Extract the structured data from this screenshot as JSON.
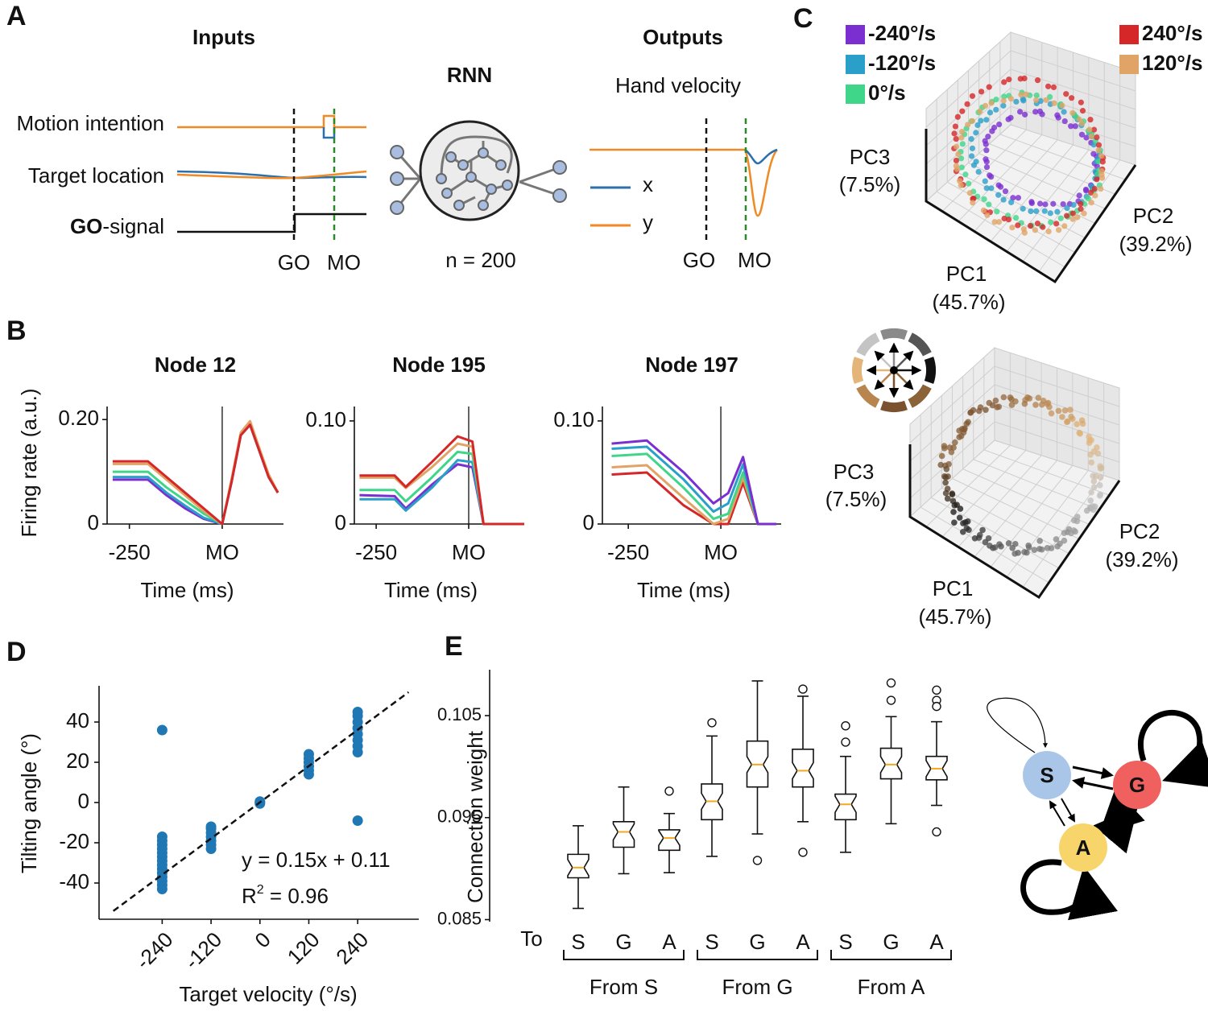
{
  "panel_labels": {
    "a": "A",
    "b": "B",
    "c": "C",
    "d": "D",
    "e": "E"
  },
  "panel_a": {
    "inputs": "Inputs",
    "rnn": "RNN",
    "outputs": "Outputs",
    "motion": "Motion intention",
    "target": "Target location",
    "go_bold": "GO",
    "go_rest": "-signal",
    "n": "n = 200",
    "hand": "Hand velocity",
    "x": "x",
    "y": "y",
    "go": "GO",
    "mo": "MO"
  },
  "panel_c": {
    "legend": [
      {
        "name": "-240°/s",
        "color": "#7b2fd1"
      },
      {
        "name": "-120°/s",
        "color": "#2a9fc9"
      },
      {
        "name": "0°/s",
        "color": "#3fd68a"
      },
      {
        "name": "240°/s",
        "color": "#d62728"
      },
      {
        "name": "120°/s",
        "color": "#e0a466"
      }
    ],
    "pc1": "PC1",
    "pc1_pct": "(45.7%)",
    "pc2": "PC2",
    "pc2_pct": "(39.2%)",
    "pc3": "PC3",
    "pc3_pct": "(7.5%)"
  },
  "chart_data": [
    {
      "type": "line",
      "title": "Node 12",
      "xlabel": "Time (ms)",
      "ylabel": "Firing rate (a.u.)",
      "x": [
        -295,
        -200,
        -150,
        -100,
        -50,
        0,
        25,
        50,
        75,
        100,
        125,
        150
      ],
      "series": [
        {
          "color": "#7b2fd1",
          "values": [
            0.085,
            0.085,
            0.055,
            0.03,
            0.01,
            0,
            0.08,
            0.17,
            0.19,
            0.14,
            0.09,
            0.06
          ]
        },
        {
          "color": "#2a9fc9",
          "values": [
            0.09,
            0.09,
            0.06,
            0.035,
            0.012,
            0,
            0.08,
            0.17,
            0.19,
            0.14,
            0.09,
            0.06
          ]
        },
        {
          "color": "#3fd68a",
          "values": [
            0.1,
            0.1,
            0.07,
            0.045,
            0.02,
            0,
            0.082,
            0.172,
            0.192,
            0.142,
            0.092,
            0.06
          ]
        },
        {
          "color": "#e0a466",
          "values": [
            0.115,
            0.115,
            0.085,
            0.055,
            0.025,
            0,
            0.085,
            0.175,
            0.197,
            0.145,
            0.095,
            0.06
          ]
        },
        {
          "color": "#d62728",
          "values": [
            0.12,
            0.12,
            0.09,
            0.06,
            0.03,
            0,
            0.08,
            0.17,
            0.19,
            0.14,
            0.09,
            0.06
          ]
        }
      ],
      "xlim": [
        -310,
        165
      ],
      "ylim": [
        0,
        0.225
      ],
      "xticks": [
        -250,
        {
          "value": 0,
          "label": "MO"
        }
      ],
      "yticks": [
        0,
        {
          "value": 0.2,
          "label": "0.20"
        }
      ],
      "reference_line_x": 0
    },
    {
      "type": "line",
      "title": "Node 195",
      "xlabel": "Time (ms)",
      "x": [
        -295,
        -200,
        -170,
        -100,
        -30,
        10,
        40,
        150
      ],
      "series": [
        {
          "color": "#7b2fd1",
          "values": [
            0.028,
            0.027,
            0.015,
            0.038,
            0.058,
            0.055,
            0,
            0
          ]
        },
        {
          "color": "#2a9fc9",
          "values": [
            0.024,
            0.024,
            0.013,
            0.035,
            0.062,
            0.06,
            0,
            0
          ]
        },
        {
          "color": "#3fd68a",
          "values": [
            0.033,
            0.033,
            0.022,
            0.045,
            0.07,
            0.068,
            0,
            0
          ]
        },
        {
          "color": "#e0a466",
          "values": [
            0.045,
            0.045,
            0.035,
            0.055,
            0.078,
            0.075,
            0,
            0
          ]
        },
        {
          "color": "#d62728",
          "values": [
            0.047,
            0.047,
            0.036,
            0.06,
            0.085,
            0.08,
            0,
            0
          ]
        }
      ],
      "xlim": [
        -309,
        148
      ],
      "ylim": [
        0,
        0.114
      ],
      "xticks": [
        -250,
        {
          "value": 0,
          "label": "MO"
        }
      ],
      "yticks": [
        0,
        {
          "value": 0.1,
          "label": "0.10"
        }
      ],
      "reference_line_x": 0
    },
    {
      "type": "line",
      "title": "Node 197",
      "xlabel": "Time (ms)",
      "x": [
        -295,
        -200,
        -100,
        -20,
        20,
        60,
        100,
        150
      ],
      "series": [
        {
          "color": "#d62728",
          "values": [
            0.048,
            0.05,
            0.018,
            0,
            0,
            0.04,
            0,
            0
          ]
        },
        {
          "color": "#e0a466",
          "values": [
            0.055,
            0.057,
            0.025,
            0,
            0.005,
            0.045,
            0,
            0
          ]
        },
        {
          "color": "#3fd68a",
          "values": [
            0.066,
            0.068,
            0.035,
            0.005,
            0.01,
            0.05,
            0,
            0
          ]
        },
        {
          "color": "#2a9fc9",
          "values": [
            0.073,
            0.075,
            0.043,
            0.012,
            0.02,
            0.058,
            0,
            0
          ]
        },
        {
          "color": "#7b2fd1",
          "values": [
            0.078,
            0.081,
            0.05,
            0.02,
            0.03,
            0.065,
            0,
            0
          ]
        }
      ],
      "xlim": [
        -320,
        163
      ],
      "ylim": [
        0,
        0.114
      ],
      "xticks": [
        -250,
        {
          "value": 0,
          "label": "MO"
        }
      ],
      "yticks": [
        0,
        {
          "value": 0.1,
          "label": "0.10"
        }
      ],
      "reference_line_x": 0
    },
    {
      "type": "scatter",
      "xlabel": "Target velocity (°/s)",
      "ylabel": "Tilting angle (°)",
      "color": "#1f77b4",
      "x": [
        -240,
        -240,
        -240,
        -240,
        -240,
        -240,
        -240,
        -240,
        -240,
        -240,
        -240,
        -240,
        -240,
        -240,
        -240,
        -120,
        -120,
        -120,
        -120,
        -120,
        -120,
        -120,
        0,
        0,
        0,
        120,
        120,
        120,
        120,
        120,
        120,
        240,
        240,
        240,
        240,
        240,
        240,
        240,
        240,
        240
      ],
      "values": [
        -43,
        -41,
        -39,
        -37,
        -35,
        -33,
        -31,
        -29,
        -27,
        -25,
        -23,
        -21,
        -19,
        -17,
        36,
        -23,
        -21,
        -19,
        -17,
        -15,
        -13,
        -12,
        0,
        0.5,
        -0.5,
        14,
        16,
        18,
        20,
        22,
        24,
        25,
        28,
        31,
        34,
        37,
        40,
        43,
        45,
        -9
      ],
      "xlim": [
        -395,
        390
      ],
      "ylim": [
        -58,
        58
      ],
      "xticks": [
        -240,
        -120,
        0,
        120,
        240
      ],
      "yticks": [
        -40,
        -20,
        0,
        20,
        40
      ],
      "fit": {
        "slope": 0.15,
        "intercept": 0.11,
        "xrange": [
          -360,
          365
        ],
        "label": "y = 0.15x + 0.11"
      },
      "r2": {
        "base": "R",
        "sup": "2",
        "rest": " = 0.96"
      }
    },
    {
      "type": "box",
      "ylabel": "Connection weight",
      "to_label": "To",
      "median_color": "#f5a623",
      "categories": [
        "S",
        "G",
        "A",
        "S",
        "G",
        "A",
        "S",
        "G",
        "A"
      ],
      "groups": [
        "From S",
        "From G",
        "From A"
      ],
      "boxes": [
        {
          "whislo": 0.0861,
          "q1": 0.0891,
          "med": 0.0901,
          "q3": 0.0914,
          "whishi": 0.0942,
          "fliers": []
        },
        {
          "whislo": 0.0895,
          "q1": 0.0921,
          "med": 0.0936,
          "q3": 0.0946,
          "whishi": 0.098,
          "fliers": []
        },
        {
          "whislo": 0.0896,
          "q1": 0.0918,
          "med": 0.093,
          "q3": 0.0938,
          "whishi": 0.0954,
          "fliers": [
            0.0976
          ]
        },
        {
          "whislo": 0.0912,
          "q1": 0.0948,
          "med": 0.0966,
          "q3": 0.0983,
          "whishi": 0.103,
          "fliers": [
            0.1043
          ]
        },
        {
          "whislo": 0.0934,
          "q1": 0.098,
          "med": 0.1002,
          "q3": 0.1025,
          "whishi": 0.1084,
          "fliers": [
            0.0908
          ]
        },
        {
          "whislo": 0.0946,
          "q1": 0.098,
          "med": 0.0996,
          "q3": 0.1017,
          "whishi": 0.1069,
          "fliers": [
            0.1076,
            0.0916
          ]
        },
        {
          "whislo": 0.0916,
          "q1": 0.0948,
          "med": 0.0963,
          "q3": 0.0973,
          "whishi": 0.101,
          "fliers": [
            0.104,
            0.1024
          ]
        },
        {
          "whislo": 0.0944,
          "q1": 0.0988,
          "med": 0.1002,
          "q3": 0.1018,
          "whishi": 0.1049,
          "fliers": [
            0.1082,
            0.1065
          ]
        },
        {
          "whislo": 0.0962,
          "q1": 0.0987,
          "med": 0.0998,
          "q3": 0.101,
          "whishi": 0.1044,
          "fliers": [
            0.1075,
            0.1065,
            0.1059,
            0.0936
          ]
        }
      ],
      "ylim": [
        0.0848,
        0.1095
      ],
      "yticks": [
        0.085,
        0.095,
        0.105
      ]
    }
  ],
  "network": {
    "nodes": [
      {
        "label": "S",
        "color": "#a9c6e8"
      },
      {
        "label": "G",
        "color": "#f0605e"
      },
      {
        "label": "A",
        "color": "#f7d56a"
      }
    ]
  }
}
